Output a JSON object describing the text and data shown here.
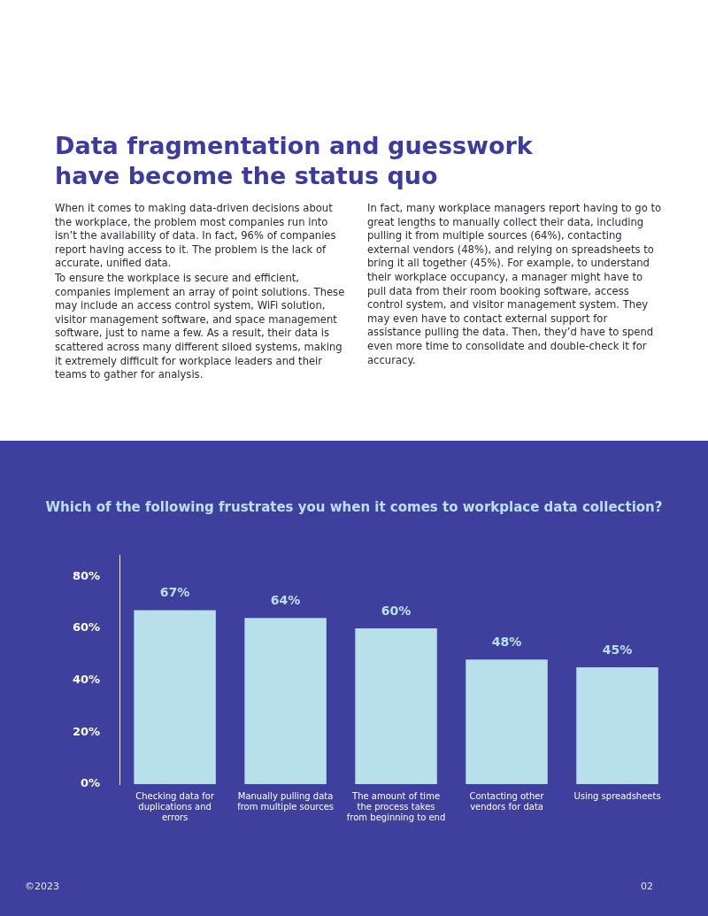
{
  "chart_data": {
    "type": "bar",
    "title": "Data fragmentation and guesswork have become the status quo",
    "subtitle": "Which of the following frustrates you when it comes to workplace data collection?",
    "annotations": [
      "When it comes to making data-driven decisions about the workplace, the problem most companies run into isn’t the availability of data. In fact, 96% of companies report having access to it. The problem is the lack of accurate, unified data.",
      "To ensure the workplace is secure and efficient, companies implement an array of point solutions. These may include an access control system, WiFi solution, visitor management software, and space management software, just to name a few. As a result, their data is scattered across many different siloed systems, making it extremely difficult for workplace leaders and their teams to gather for analysis.",
      "In fact, many workplace managers report having to go to great lengths to manually collect their data, including pulling it from multiple sources (64%), contacting external vendors (48%), and relying on spreadsheets to bring it all together (45%). For example, to understand their workplace occupancy, a manager might have to pull data from their room booking software, access control system, and visitor management system. They may even have to contact external support for assistance pulling the data. Then, they’d have to spend even more time to consolidate and double-check it for accuracy.",
      "©2023",
      "02"
    ],
    "categories": [
      "Checking data for duplications and errors",
      "Manually pulling data from multiple sources",
      "The amount of time the process takes from beginning to end",
      "Contacting other vendors for data",
      "Using spreadsheets"
    ],
    "values": [
      67,
      64,
      60,
      48,
      45
    ],
    "color": "#b8e0ea",
    "ylim": [
      0,
      88
    ],
    "yticks": [
      {
        "value": 0,
        "label": "0%"
      },
      {
        "value": 20,
        "label": "20%"
      },
      {
        "value": 40,
        "label": "40%"
      },
      {
        "value": 60,
        "label": "60%"
      },
      {
        "value": 80,
        "label": "80%"
      }
    ],
    "value_labels": [
      "67%",
      "64%",
      "60%",
      "48%",
      "45%"
    ],
    "grid": false,
    "legend": false
  }
}
